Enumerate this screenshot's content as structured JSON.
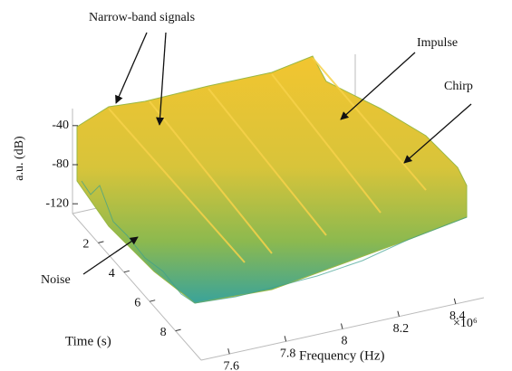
{
  "chart_data": {
    "type": "surface3d",
    "zlabel": "a.u. (dB)",
    "ylabel": "Time  (s)",
    "xlabel": "Frequency  (Hz)",
    "x_exponent": "×10⁶",
    "xlim": [
      7.5,
      8.5
    ],
    "xticks": [
      7.6,
      7.8,
      8,
      8.2,
      8.4
    ],
    "ylim": [
      0,
      10
    ],
    "yticks": [
      2,
      4,
      6,
      8
    ],
    "zlim": [
      -130,
      -30
    ],
    "zticks": [
      -40,
      -80,
      -120
    ],
    "annotations": [
      "Narrow-band signals",
      "Impulse",
      "Chirp",
      "Noise"
    ]
  }
}
